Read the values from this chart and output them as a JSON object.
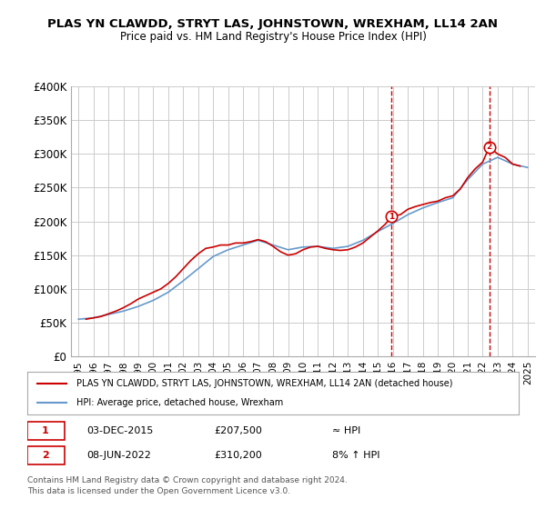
{
  "title": "PLAS YN CLAWDD, STRYT LAS, JOHNSTOWN, WREXHAM, LL14 2AN",
  "subtitle": "Price paid vs. HM Land Registry's House Price Index (HPI)",
  "ylabel_ticks": [
    "£0",
    "£50K",
    "£100K",
    "£150K",
    "£200K",
    "£250K",
    "£300K",
    "£350K",
    "£400K"
  ],
  "ylim": [
    0,
    400000
  ],
  "yticks": [
    0,
    50000,
    100000,
    150000,
    200000,
    250000,
    300000,
    350000,
    400000
  ],
  "legend_line1": "PLAS YN CLAWDD, STRYT LAS, JOHNSTOWN, WREXHAM, LL14 2AN (detached house)",
  "legend_line2": "HPI: Average price, detached house, Wrexham",
  "sale1_date": "03-DEC-2015",
  "sale1_price": 207500,
  "sale1_year": 2015.92,
  "sale1_label": "1",
  "sale1_vs": "≈ HPI",
  "sale2_date": "08-JUN-2022",
  "sale2_price": 310200,
  "sale2_year": 2022.44,
  "sale2_label": "2",
  "sale2_vs": "8% ↑ HPI",
  "footer1": "Contains HM Land Registry data © Crown copyright and database right 2024.",
  "footer2": "This data is licensed under the Open Government Licence v3.0.",
  "line_color_red": "#cc0000",
  "line_color_blue": "#6699cc",
  "marker_box_color": "#cc0000",
  "bg_color": "#ffffff",
  "plot_bg_color": "#ffffff",
  "grid_color": "#cccccc",
  "hpi_years": [
    1995,
    1996,
    1997,
    1998,
    1999,
    2000,
    2001,
    2002,
    2003,
    2004,
    2005,
    2006,
    2007,
    2008,
    2009,
    2010,
    2011,
    2012,
    2013,
    2014,
    2015,
    2016,
    2017,
    2018,
    2019,
    2020,
    2021,
    2022,
    2023,
    2024,
    2025
  ],
  "hpi_values": [
    55000,
    57000,
    62000,
    67000,
    74000,
    83000,
    95000,
    112000,
    130000,
    148000,
    158000,
    165000,
    172000,
    165000,
    158000,
    162000,
    163000,
    160000,
    163000,
    172000,
    185000,
    197000,
    210000,
    220000,
    228000,
    235000,
    262000,
    285000,
    295000,
    285000,
    280000
  ],
  "prop_years": [
    1995.5,
    1996.0,
    1996.5,
    1997.0,
    1997.5,
    1998.0,
    1998.5,
    1999.0,
    1999.5,
    2000.0,
    2000.5,
    2001.0,
    2001.5,
    2002.0,
    2002.5,
    2003.0,
    2003.5,
    2004.0,
    2004.5,
    2005.0,
    2005.5,
    2006.0,
    2006.5,
    2007.0,
    2007.5,
    2008.0,
    2008.5,
    2009.0,
    2009.5,
    2010.0,
    2010.5,
    2011.0,
    2011.5,
    2012.0,
    2012.5,
    2013.0,
    2013.5,
    2014.0,
    2014.5,
    2015.0,
    2015.5,
    2015.92,
    2016.5,
    2017.0,
    2017.5,
    2018.0,
    2018.5,
    2019.0,
    2019.5,
    2020.0,
    2020.5,
    2021.0,
    2021.5,
    2022.0,
    2022.44,
    2023.0,
    2023.5,
    2024.0,
    2024.5
  ],
  "prop_values": [
    55000,
    57000,
    59000,
    63000,
    67000,
    72000,
    78000,
    85000,
    90000,
    95000,
    100000,
    108000,
    118000,
    130000,
    142000,
    152000,
    160000,
    162000,
    165000,
    165000,
    168000,
    168000,
    170000,
    173000,
    170000,
    163000,
    155000,
    150000,
    152000,
    158000,
    162000,
    163000,
    160000,
    158000,
    157000,
    158000,
    162000,
    168000,
    177000,
    186000,
    196000,
    207500,
    210000,
    218000,
    222000,
    225000,
    228000,
    230000,
    235000,
    238000,
    248000,
    265000,
    278000,
    288000,
    310200,
    300000,
    295000,
    285000,
    282000
  ],
  "xtick_years": [
    1995,
    1996,
    1997,
    1998,
    1999,
    2000,
    2001,
    2002,
    2003,
    2004,
    2005,
    2006,
    2007,
    2008,
    2009,
    2010,
    2011,
    2012,
    2013,
    2014,
    2015,
    2016,
    2017,
    2018,
    2019,
    2020,
    2021,
    2022,
    2023,
    2024,
    2025
  ]
}
